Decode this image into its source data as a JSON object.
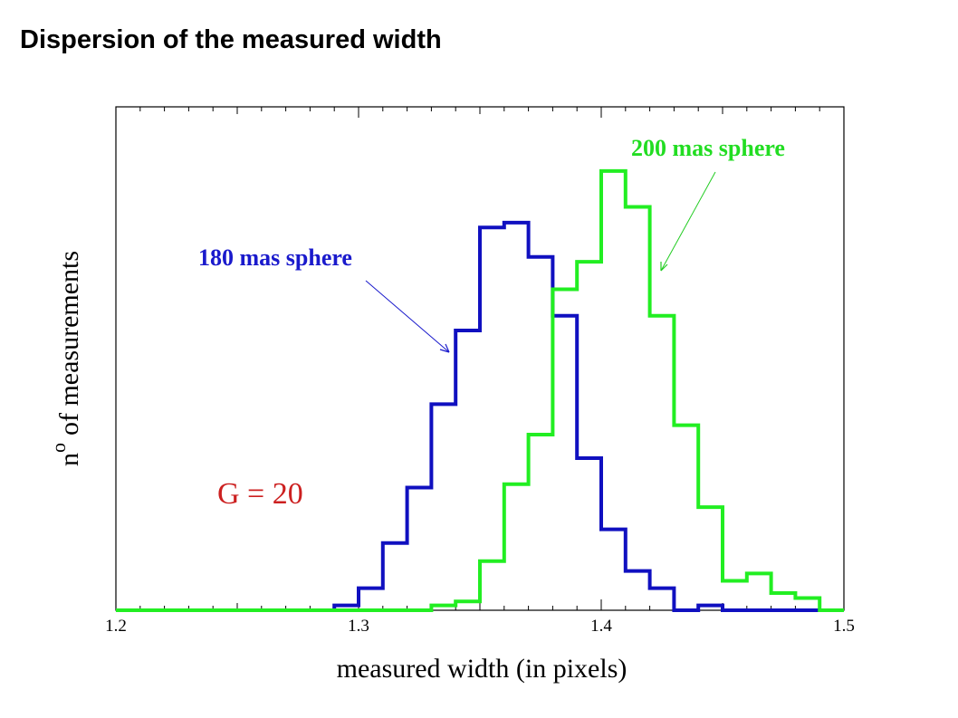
{
  "page": {
    "title": "Dispersion of the measured width"
  },
  "chart_data": {
    "type": "step",
    "title": "",
    "xlabel": "measured width (in pixels)",
    "ylabel": "n o of measurements",
    "ylabel_parts": {
      "base": "n",
      "sup": "o",
      "rest": "of measurements"
    },
    "xlim": [
      1.2,
      1.5
    ],
    "ylim": [
      0,
      1
    ],
    "xticks": [
      "1.2",
      "1.3",
      "1.4",
      "1.5"
    ],
    "bin_edges": [
      1.2,
      1.21,
      1.22,
      1.23,
      1.24,
      1.25,
      1.26,
      1.27,
      1.28,
      1.29,
      1.3,
      1.31,
      1.32,
      1.33,
      1.34,
      1.35,
      1.36,
      1.37,
      1.38,
      1.39,
      1.4,
      1.41,
      1.42,
      1.43,
      1.44,
      1.45,
      1.46,
      1.47,
      1.48,
      1.49
    ],
    "series": [
      {
        "name": "180 mas sphere",
        "color": "#1010c0",
        "values": [
          0,
          0,
          0,
          0,
          0,
          0,
          0,
          0,
          0,
          0.01,
          0.045,
          0.137,
          0.25,
          0.42,
          0.57,
          0.78,
          0.79,
          0.72,
          0.6,
          0.31,
          0.165,
          0.08,
          0.045,
          0,
          0.01,
          0,
          0,
          0,
          0,
          0
        ]
      },
      {
        "name": "200 mas sphere",
        "color": "#22ee22",
        "values": [
          0,
          0,
          0,
          0,
          0,
          0,
          0,
          0,
          0,
          0,
          0,
          0,
          0,
          0.01,
          0.018,
          0.1,
          0.257,
          0.358,
          0.654,
          0.71,
          0.895,
          0.822,
          0.6,
          0.377,
          0.21,
          0.06,
          0.075,
          0.035,
          0.025,
          0
        ]
      }
    ],
    "annotations": [
      {
        "text": "180 mas sphere",
        "color": "#1a1acc"
      },
      {
        "text": "200 mas sphere",
        "color": "#22dd22"
      },
      {
        "text": "G = 20",
        "color": "#cc2020"
      }
    ],
    "grid": false,
    "legend": "none"
  }
}
